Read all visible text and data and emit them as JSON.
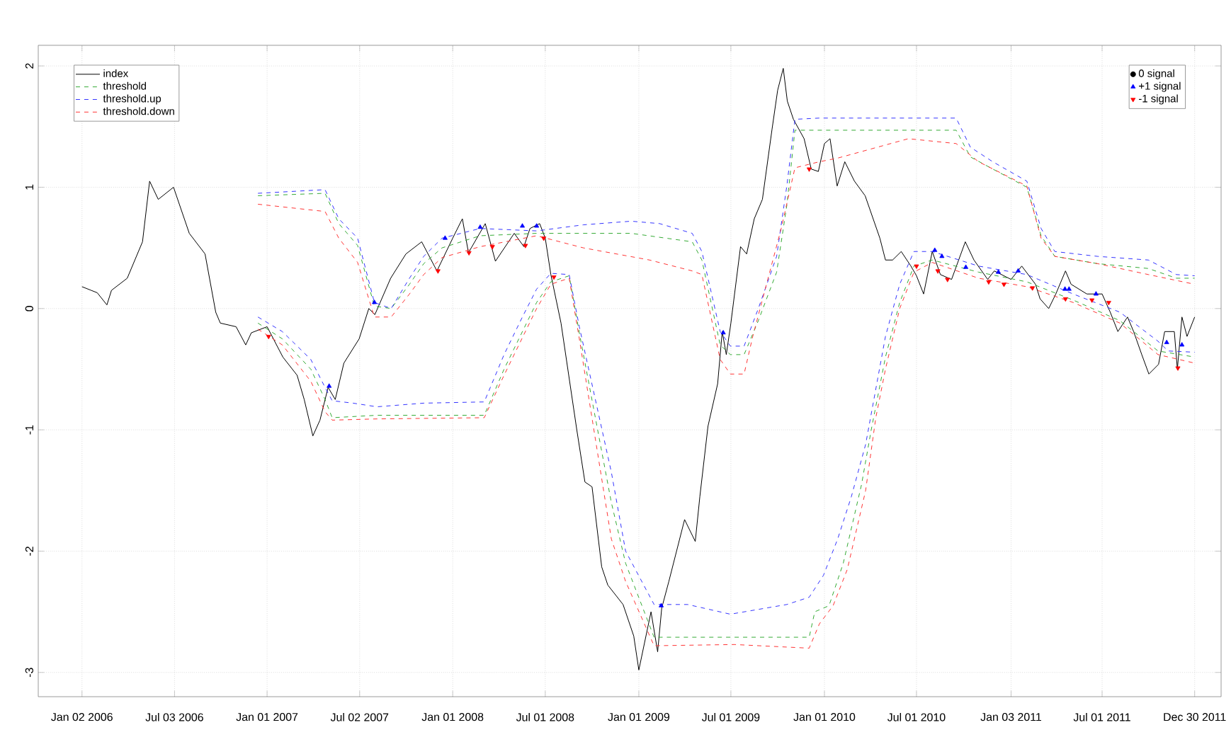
{
  "chart_data": {
    "type": "line",
    "xlim": [
      "2005-10-08",
      "2012-02-20"
    ],
    "ylim": [
      -3.2,
      2.17
    ],
    "xticks": [
      {
        "value": "2006-01-02",
        "label": "Jan 02 2006"
      },
      {
        "value": "2006-07-03",
        "label": "Jul 03 2006"
      },
      {
        "value": "2007-01-01",
        "label": "Jan 01 2007"
      },
      {
        "value": "2007-07-02",
        "label": "Jul 02 2007"
      },
      {
        "value": "2008-01-01",
        "label": "Jan 01 2008"
      },
      {
        "value": "2008-07-01",
        "label": "Jul 01 2008"
      },
      {
        "value": "2009-01-01",
        "label": "Jan 01 2009"
      },
      {
        "value": "2009-07-01",
        "label": "Jul 01 2009"
      },
      {
        "value": "2010-01-01",
        "label": "Jan 01 2010"
      },
      {
        "value": "2010-07-01",
        "label": "Jul 01 2010"
      },
      {
        "value": "2011-01-03",
        "label": "Jan 03 2011"
      },
      {
        "value": "2011-07-01",
        "label": "Jul 01 2011"
      },
      {
        "value": "2011-12-30",
        "label": "Dec 30 2011"
      }
    ],
    "yticks": [
      -3,
      -2,
      -1,
      0,
      1,
      2
    ],
    "grid": true,
    "legend": "top left",
    "series": [
      {
        "name": "index",
        "line_style": "solid",
        "color": "#000000",
        "x": [
          "2006-01-02",
          "2006-01-20",
          "2006-02-01",
          "2006-02-20",
          "2006-03-01",
          "2006-04-01",
          "2006-05-01",
          "2006-05-15",
          "2006-06-01",
          "2006-07-01",
          "2006-08-01",
          "2006-09-01",
          "2006-09-22",
          "2006-10-01",
          "2006-11-01",
          "2006-11-20",
          "2006-12-01",
          "2007-01-01",
          "2007-02-01",
          "2007-03-01",
          "2007-03-15",
          "2007-04-01",
          "2007-04-15",
          "2007-05-01",
          "2007-05-15",
          "2007-06-01",
          "2007-07-01",
          "2007-07-20",
          "2007-08-01",
          "2007-09-01",
          "2007-10-01",
          "2007-11-01",
          "2007-12-01",
          "2008-01-01",
          "2008-01-20",
          "2008-02-01",
          "2008-03-05",
          "2008-03-25",
          "2008-05-01",
          "2008-05-20",
          "2008-06-01",
          "2008-06-20",
          "2008-07-01",
          "2008-07-12",
          "2008-08-01",
          "2008-09-01",
          "2008-09-17",
          "2008-10-01",
          "2008-10-20",
          "2008-11-01",
          "2008-12-01",
          "2008-12-22",
          "2009-01-01",
          "2009-01-25",
          "2009-02-07",
          "2009-02-15",
          "2009-03-01",
          "2009-04-01",
          "2009-04-22",
          "2009-05-01",
          "2009-05-17",
          "2009-06-05",
          "2009-06-14",
          "2009-06-22",
          "2009-07-01",
          "2009-07-20",
          "2009-08-01",
          "2009-08-16",
          "2009-09-01",
          "2009-09-20",
          "2009-10-01",
          "2009-10-12",
          "2009-10-20",
          "2009-11-01",
          "2009-11-22",
          "2009-12-06",
          "2009-12-20",
          "2010-01-01",
          "2010-01-12",
          "2010-01-26",
          "2010-02-10",
          "2010-03-01",
          "2010-03-22",
          "2010-04-20",
          "2010-05-01",
          "2010-05-15",
          "2010-06-01",
          "2010-06-20",
          "2010-07-01",
          "2010-07-15",
          "2010-08-01",
          "2010-08-17",
          "2010-09-08",
          "2010-10-05",
          "2010-10-22",
          "2010-11-18",
          "2010-12-01",
          "2011-01-03",
          "2011-01-24",
          "2011-02-20",
          "2011-03-01",
          "2011-03-18",
          "2011-04-01",
          "2011-04-20",
          "2011-05-01",
          "2011-06-01",
          "2011-07-01",
          "2011-07-17",
          "2011-08-01",
          "2011-08-20",
          "2011-09-01",
          "2011-09-17",
          "2011-10-01",
          "2011-10-20",
          "2011-11-01",
          "2011-11-20",
          "2011-11-26",
          "2011-12-05",
          "2011-12-15",
          "2011-12-30"
        ],
        "values": [
          0.18,
          0.15,
          0.13,
          0.03,
          0.15,
          0.25,
          0.55,
          1.05,
          0.9,
          1.0,
          0.62,
          0.45,
          -0.03,
          -0.12,
          -0.15,
          -0.3,
          -0.2,
          -0.15,
          -0.4,
          -0.55,
          -0.75,
          -1.05,
          -0.92,
          -0.65,
          -0.75,
          -0.45,
          -0.25,
          0.0,
          -0.05,
          0.25,
          0.45,
          0.55,
          0.31,
          0.58,
          0.74,
          0.46,
          0.7,
          0.39,
          0.62,
          0.51,
          0.66,
          0.7,
          0.58,
          0.28,
          -0.12,
          -1.0,
          -1.43,
          -1.47,
          -2.13,
          -2.28,
          -2.44,
          -2.7,
          -2.98,
          -2.5,
          -2.83,
          -2.47,
          -2.25,
          -1.74,
          -1.92,
          -1.55,
          -0.97,
          -0.62,
          -0.19,
          -0.38,
          -0.12,
          0.51,
          0.45,
          0.74,
          0.9,
          1.48,
          1.8,
          1.98,
          1.71,
          1.56,
          1.4,
          1.15,
          1.13,
          1.36,
          1.4,
          1.01,
          1.21,
          1.05,
          0.93,
          0.58,
          0.4,
          0.4,
          0.47,
          0.35,
          0.27,
          0.12,
          0.47,
          0.28,
          0.24,
          0.55,
          0.4,
          0.24,
          0.31,
          0.24,
          0.35,
          0.2,
          0.08,
          0.0,
          0.12,
          0.31,
          0.2,
          0.12,
          0.12,
          -0.03,
          -0.19,
          -0.07,
          -0.19,
          -0.38,
          -0.54,
          -0.46,
          -0.19,
          -0.19,
          -0.5,
          -0.07,
          -0.23,
          -0.07
        ]
      },
      {
        "name": "threshold",
        "line_style": "dashed",
        "color": "#33aa33",
        "x": [
          "2006-12-14",
          "2007-04-25",
          "2007-05-22",
          "2007-06-28",
          "2007-07-31",
          "2007-09-02",
          "2007-10-08",
          "2007-11-05",
          "2007-12-11",
          "2008-02-24",
          "2008-06-14",
          "2008-12-17",
          "2009-04-16",
          "2009-05-05",
          "2009-06-10",
          "2009-06-30",
          "2009-07-27",
          "2009-08-24",
          "2009-09-29",
          "2009-10-19",
          "2009-11-04",
          "2010-09-17",
          "2010-10-15",
          "2010-11-28",
          "2011-02-03",
          "2011-03-03",
          "2011-03-30",
          "2011-06-22",
          "2011-09-30",
          "2011-11-24",
          "2011-12-30"
        ],
        "values": [
          0.93,
          0.95,
          0.7,
          0.52,
          0.02,
          0.0,
          0.2,
          0.37,
          0.5,
          0.6,
          0.62,
          0.62,
          0.55,
          0.4,
          -0.3,
          -0.38,
          -0.38,
          -0.1,
          0.3,
          0.85,
          1.47,
          1.47,
          1.25,
          1.15,
          1.0,
          0.6,
          0.43,
          0.37,
          0.33,
          0.25,
          0.25
        ]
      },
      {
        "name": "threshold.up",
        "line_style": "dashed",
        "color": "#3333ff",
        "x": [
          "2006-12-14",
          "2007-04-25",
          "2007-05-22",
          "2007-06-28",
          "2007-07-31",
          "2007-09-02",
          "2007-10-08",
          "2007-11-05",
          "2007-12-11",
          "2008-02-24",
          "2008-06-14",
          "2008-09-14",
          "2008-12-17",
          "2009-02-11",
          "2009-04-16",
          "2009-05-05",
          "2009-06-10",
          "2009-06-30",
          "2009-07-27",
          "2009-08-24",
          "2009-09-29",
          "2009-10-19",
          "2009-11-04",
          "2009-12-22",
          "2010-09-17",
          "2010-10-15",
          "2010-11-28",
          "2011-02-03",
          "2011-03-03",
          "2011-03-30",
          "2011-06-22",
          "2011-09-30",
          "2011-11-24",
          "2011-12-30"
        ],
        "values": [
          0.95,
          0.98,
          0.74,
          0.58,
          0.05,
          0.0,
          0.25,
          0.43,
          0.58,
          0.66,
          0.64,
          0.69,
          0.72,
          0.7,
          0.62,
          0.47,
          -0.19,
          -0.31,
          -0.31,
          0.0,
          0.43,
          1.01,
          1.56,
          1.57,
          1.57,
          1.33,
          1.21,
          1.05,
          0.66,
          0.47,
          0.43,
          0.4,
          0.28,
          0.27
        ]
      },
      {
        "name": "threshold.down",
        "line_style": "dashed",
        "color": "#ff3333",
        "x": [
          "2006-12-14",
          "2007-04-25",
          "2007-05-22",
          "2007-06-28",
          "2007-07-31",
          "2007-09-02",
          "2007-10-08",
          "2007-11-05",
          "2007-12-11",
          "2008-02-24",
          "2008-06-14",
          "2008-09-14",
          "2009-01-22",
          "2009-04-16",
          "2009-05-05",
          "2009-06-10",
          "2009-06-30",
          "2009-07-27",
          "2009-08-13",
          "2009-10-08",
          "2009-11-04",
          "2009-12-22",
          "2010-01-27",
          "2010-06-15",
          "2010-09-17",
          "2010-10-31",
          "2011-02-03",
          "2011-03-03",
          "2011-03-30",
          "2011-06-22",
          "2011-09-30",
          "2011-12-30"
        ],
        "values": [
          0.86,
          0.8,
          0.58,
          0.38,
          -0.07,
          -0.07,
          0.12,
          0.28,
          0.42,
          0.51,
          0.6,
          0.5,
          0.4,
          0.31,
          0.28,
          -0.42,
          -0.54,
          -0.54,
          -0.23,
          0.66,
          1.16,
          1.21,
          1.24,
          1.4,
          1.36,
          1.21,
          1.01,
          0.58,
          0.43,
          0.37,
          0.28,
          0.2
        ]
      },
      {
        "type": "line",
        "line_style": "dashed",
        "color": "#33aa33",
        "x": [
          "2006-12-14",
          "2007-01-31",
          "2007-03-28",
          "2007-04-25",
          "2007-05-09",
          "2007-08-05",
          "2008-03-03",
          "2008-04-11",
          "2008-06-14",
          "2008-07-12",
          "2008-08-17",
          "2008-09-06",
          "2008-11-08",
          "2008-12-06",
          "2009-01-31",
          "2009-12-02",
          "2009-12-13",
          "2010-01-10",
          "2010-02-07",
          "2010-03-15",
          "2010-04-03",
          "2010-05-01",
          "2010-05-29",
          "2010-06-26",
          "2010-08-01",
          "2010-10-31",
          "2011-02-03",
          "2011-05-05",
          "2011-08-05",
          "2011-10-19",
          "2011-12-30"
        ],
        "values": [
          -0.12,
          -0.25,
          -0.5,
          -0.75,
          -0.9,
          -0.88,
          -0.88,
          -0.5,
          0.05,
          0.22,
          0.27,
          -0.2,
          -1.6,
          -2.1,
          -2.71,
          -2.71,
          -2.5,
          -2.45,
          -2.1,
          -1.45,
          -1.0,
          -0.4,
          0.05,
          0.35,
          0.4,
          0.3,
          0.22,
          0.07,
          -0.1,
          -0.35,
          -0.4
        ]
      },
      {
        "type": "line",
        "line_style": "dashed",
        "color": "#3333ff",
        "x": [
          "2006-12-14",
          "2007-01-31",
          "2007-03-28",
          "2007-04-25",
          "2007-05-09",
          "2007-06-19",
          "2007-08-05",
          "2007-11-05",
          "2008-03-03",
          "2008-03-15",
          "2008-04-11",
          "2008-05-17",
          "2008-06-14",
          "2008-07-12",
          "2008-08-17",
          "2008-09-06",
          "2008-11-08",
          "2008-12-06",
          "2009-01-31",
          "2009-04-07",
          "2009-06-30",
          "2009-10-19",
          "2009-12-02",
          "2009-12-30",
          "2010-01-27",
          "2010-02-23",
          "2010-03-23",
          "2010-05-01",
          "2010-05-29",
          "2010-06-26",
          "2010-08-01",
          "2010-10-31",
          "2011-02-03",
          "2011-05-05",
          "2011-08-05",
          "2011-10-19",
          "2011-11-08",
          "2011-12-30"
        ],
        "values": [
          -0.07,
          -0.19,
          -0.42,
          -0.65,
          -0.76,
          -0.78,
          -0.81,
          -0.78,
          -0.77,
          -0.65,
          -0.38,
          -0.07,
          0.16,
          0.29,
          0.28,
          -0.15,
          -1.35,
          -2.0,
          -2.44,
          -2.44,
          -2.52,
          -2.44,
          -2.38,
          -2.2,
          -1.9,
          -1.55,
          -1.12,
          -0.23,
          0.2,
          0.47,
          0.47,
          0.35,
          0.28,
          0.12,
          -0.03,
          -0.27,
          -0.35,
          -0.36
        ]
      },
      {
        "type": "line",
        "line_style": "dashed",
        "color": "#ff3333",
        "x": [
          "2006-12-14",
          "2007-01-31",
          "2007-03-28",
          "2007-04-25",
          "2007-05-09",
          "2007-08-05",
          "2008-03-03",
          "2008-04-11",
          "2008-06-14",
          "2008-07-12",
          "2008-08-17",
          "2008-09-06",
          "2008-11-08",
          "2008-12-06",
          "2009-01-31",
          "2009-07-08",
          "2009-12-02",
          "2009-12-22",
          "2010-01-18",
          "2010-02-15",
          "2010-03-23",
          "2010-04-12",
          "2010-05-01",
          "2010-05-29",
          "2010-06-26",
          "2010-08-01",
          "2010-10-31",
          "2011-02-03",
          "2011-05-05",
          "2011-08-05",
          "2011-10-19",
          "2011-12-30"
        ],
        "values": [
          -0.17,
          -0.3,
          -0.6,
          -0.85,
          -0.92,
          -0.91,
          -0.9,
          -0.55,
          0.0,
          0.2,
          0.25,
          -0.25,
          -1.9,
          -2.25,
          -2.78,
          -2.77,
          -2.8,
          -2.6,
          -2.45,
          -2.15,
          -1.5,
          -0.9,
          -0.5,
          0.0,
          0.3,
          0.38,
          0.25,
          0.18,
          0.05,
          -0.12,
          -0.38,
          -0.45
        ]
      },
      {
        "name": "0 signal",
        "type": "scatter",
        "marker": "circle",
        "color": "#000000"
      },
      {
        "name": "+1 signal",
        "type": "scatter",
        "marker": "triangle",
        "color": "#0000ff",
        "x": [
          "2007-05-03",
          "2007-07-31",
          "2007-12-17",
          "2008-02-24",
          "2008-05-17",
          "2008-06-14",
          "2009-02-14",
          "2009-06-16",
          "2010-08-06",
          "2010-08-20",
          "2010-10-06",
          "2010-12-09",
          "2011-01-17",
          "2011-04-19",
          "2011-04-27",
          "2011-06-19",
          "2011-11-05",
          "2011-12-05"
        ],
        "values": [
          -0.64,
          0.05,
          0.58,
          0.67,
          0.68,
          0.68,
          -2.45,
          -0.2,
          0.48,
          0.43,
          0.34,
          0.3,
          0.31,
          0.16,
          0.16,
          0.12,
          -0.28,
          -0.3
        ]
      },
      {
        "name": "-1 signal",
        "type": "scatter",
        "marker": "triangle-down",
        "color": "#ff0000",
        "x": [
          "2007-01-04",
          "2007-12-03",
          "2008-02-02",
          "2008-03-19",
          "2008-05-23",
          "2008-06-28",
          "2008-07-18",
          "2009-12-02",
          "2010-07-01",
          "2010-08-12",
          "2010-08-31",
          "2010-11-20",
          "2010-12-20",
          "2011-02-14",
          "2011-04-20",
          "2011-06-11",
          "2011-07-14",
          "2011-11-27"
        ],
        "values": [
          -0.23,
          0.31,
          0.46,
          0.51,
          0.52,
          0.58,
          0.26,
          1.15,
          0.35,
          0.31,
          0.24,
          0.22,
          0.2,
          0.17,
          0.08,
          0.07,
          0.05,
          -0.49
        ]
      }
    ]
  }
}
